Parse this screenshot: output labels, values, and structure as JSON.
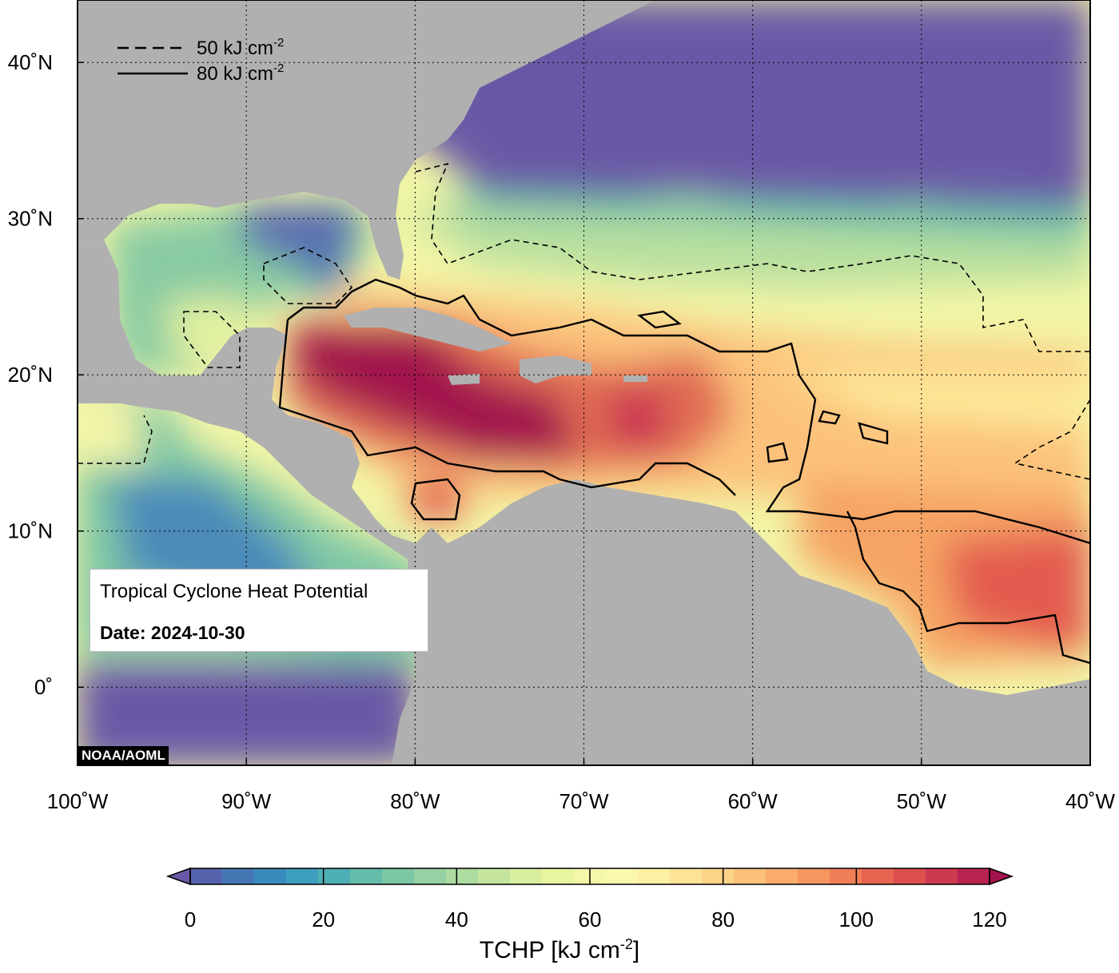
{
  "map": {
    "lon_range": [
      -100,
      -40
    ],
    "lat_range": [
      -5,
      44
    ],
    "lon_ticks": [
      {
        "lon": -100,
        "label": "100˚W"
      },
      {
        "lon": -90,
        "label": "90˚W"
      },
      {
        "lon": -80,
        "label": "80˚W"
      },
      {
        "lon": -70,
        "label": "70˚W"
      },
      {
        "lon": -60,
        "label": "60˚W"
      },
      {
        "lon": -50,
        "label": "50˚W"
      },
      {
        "lon": -40,
        "label": "40˚W"
      }
    ],
    "lat_ticks": [
      {
        "lat": 40,
        "label": "40˚N"
      },
      {
        "lat": 30,
        "label": "30˚N"
      },
      {
        "lat": 20,
        "label": "20˚N"
      },
      {
        "lat": 10,
        "label": "10˚N"
      },
      {
        "lat": 0,
        "label": "0˚"
      }
    ],
    "land_color": "#b0b0b0",
    "graticule": "dotted"
  },
  "legend": {
    "dashed": {
      "value": "50 kJ cm",
      "exp": "-2"
    },
    "solid": {
      "value": "80 kJ cm",
      "exp": "-2"
    }
  },
  "info": {
    "title": "Tropical Cyclone Heat Potential",
    "date": "Date: 2024-10-30"
  },
  "credit": "NOAA/AOML",
  "colorbar": {
    "min": 0,
    "max": 120,
    "ticks": [
      0,
      20,
      40,
      60,
      80,
      100,
      120
    ],
    "title_main": "TCHP [kJ cm",
    "title_exp": "-2",
    "title_end": "]",
    "colors": [
      "#6a58a6",
      "#5563ad",
      "#4577b5",
      "#3a8bbd",
      "#3d9fbd",
      "#4eb0b4",
      "#64bcaa",
      "#7cc7a5",
      "#95d1a2",
      "#aedba0",
      "#c5e59e",
      "#d9ee9e",
      "#e9f4a0",
      "#f4f7a8",
      "#fbf7af",
      "#fdefa3",
      "#fde396",
      "#fdd487",
      "#fcc17a",
      "#faac6c",
      "#f69560",
      "#f07e57",
      "#e86551",
      "#dd4e4f",
      "#cd3a50",
      "#b82450",
      "#a3134e"
    ]
  }
}
